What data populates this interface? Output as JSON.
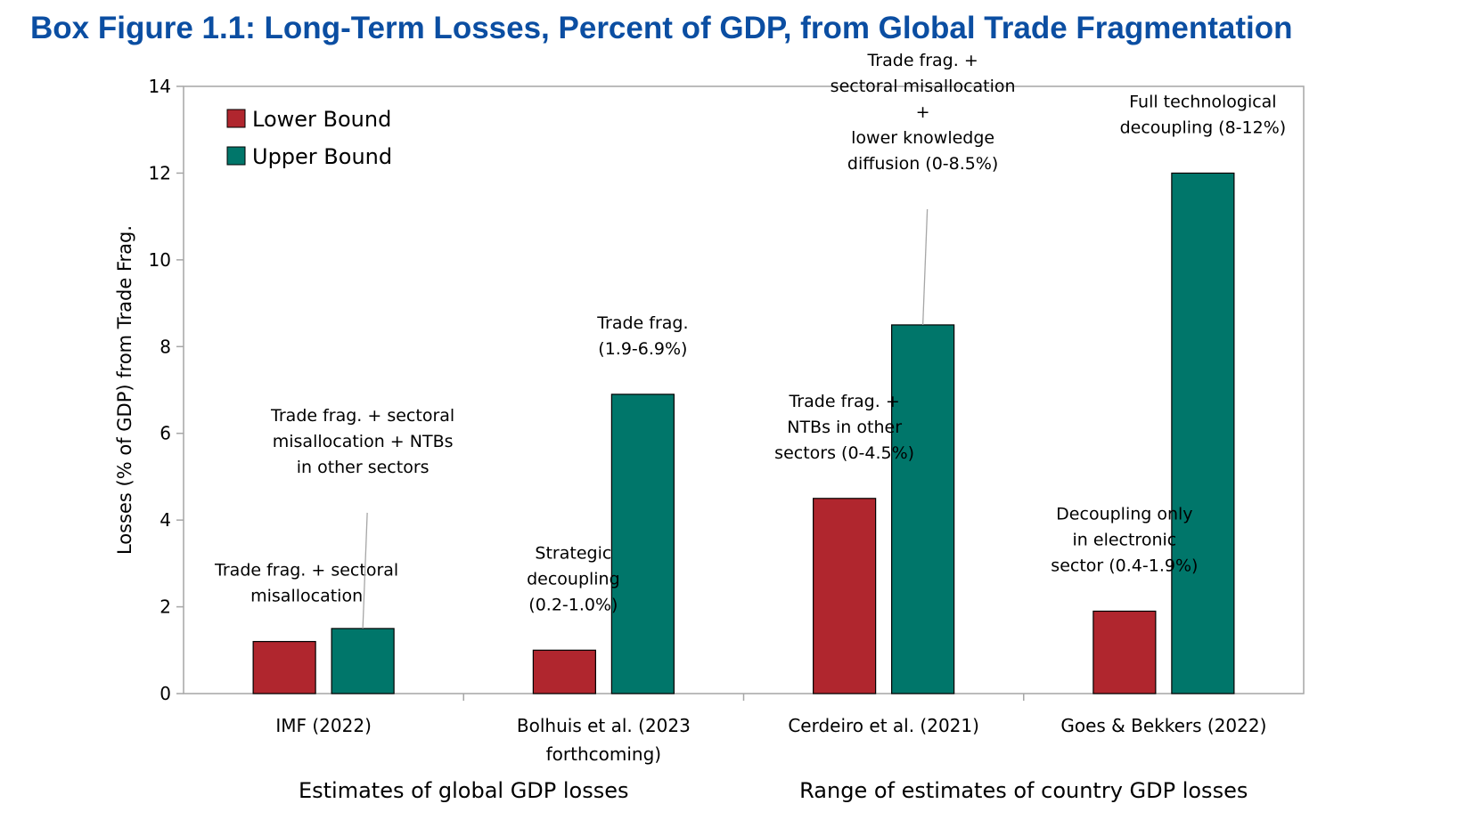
{
  "title": "Box Figure 1.1: Long-Term Losses, Percent of GDP, from Global Trade Fragmentation",
  "colors": {
    "title": "#0b4ea2",
    "lower_bound": "#b0262e",
    "upper_bound": "#00766a",
    "axis": "#a6a6a6"
  },
  "chart_data": {
    "type": "bar",
    "ylabel": "Losses (% of GDP) from  Trade Frag.",
    "ylim": [
      0,
      14
    ],
    "yticks": [
      "0",
      "2",
      "4",
      "6",
      "8",
      "10",
      "12",
      "14"
    ],
    "grid": false,
    "legend_position": "top-left",
    "categories": [
      [
        "IMF (2022)"
      ],
      [
        "Bolhuis et al. (2023",
        "forthcoming)"
      ],
      [
        "Cerdeiro et al. (2021)"
      ],
      [
        "Goes & Bekkers (2022)"
      ]
    ],
    "series": [
      {
        "name": "Lower Bound",
        "values": [
          1.2,
          1.0,
          4.5,
          1.9
        ]
      },
      {
        "name": "Upper Bound",
        "values": [
          1.5,
          6.9,
          8.5,
          12.0
        ]
      }
    ],
    "group_labels": [
      "Estimates of global GDP losses",
      "Range of estimates of country GDP losses"
    ],
    "annotations": [
      {
        "lines": [
          "Trade frag. + sectoral",
          "misallocation"
        ],
        "category": 0,
        "series": 0,
        "leader": false
      },
      {
        "lines": [
          "Trade frag. + sectoral",
          "misallocation + NTBs",
          "in other sectors"
        ],
        "category": 0,
        "series": 1,
        "leader": true
      },
      {
        "lines": [
          "Strategic",
          "decoupling",
          "(0.2-1.0%)"
        ],
        "category": 1,
        "series": 0,
        "leader": false
      },
      {
        "lines": [
          "Trade frag.",
          "(1.9-6.9%)"
        ],
        "category": 1,
        "series": 1,
        "leader": false
      },
      {
        "lines": [
          "Trade frag. +",
          "NTBs in other",
          "sectors (0-4.5%)"
        ],
        "category": 2,
        "series": 0,
        "leader": false
      },
      {
        "lines": [
          "Trade frag. +",
          "sectoral misallocation",
          "+",
          "lower knowledge",
          "diffusion (0-8.5%)"
        ],
        "category": 2,
        "series": 1,
        "leader": true
      },
      {
        "lines": [
          "Decoupling only",
          "in electronic",
          "sector (0.4-1.9%)"
        ],
        "category": 3,
        "series": 0,
        "leader": false
      },
      {
        "lines": [
          "Full technological",
          "decoupling (8-12%)"
        ],
        "category": 3,
        "series": 1,
        "leader": false
      }
    ]
  }
}
